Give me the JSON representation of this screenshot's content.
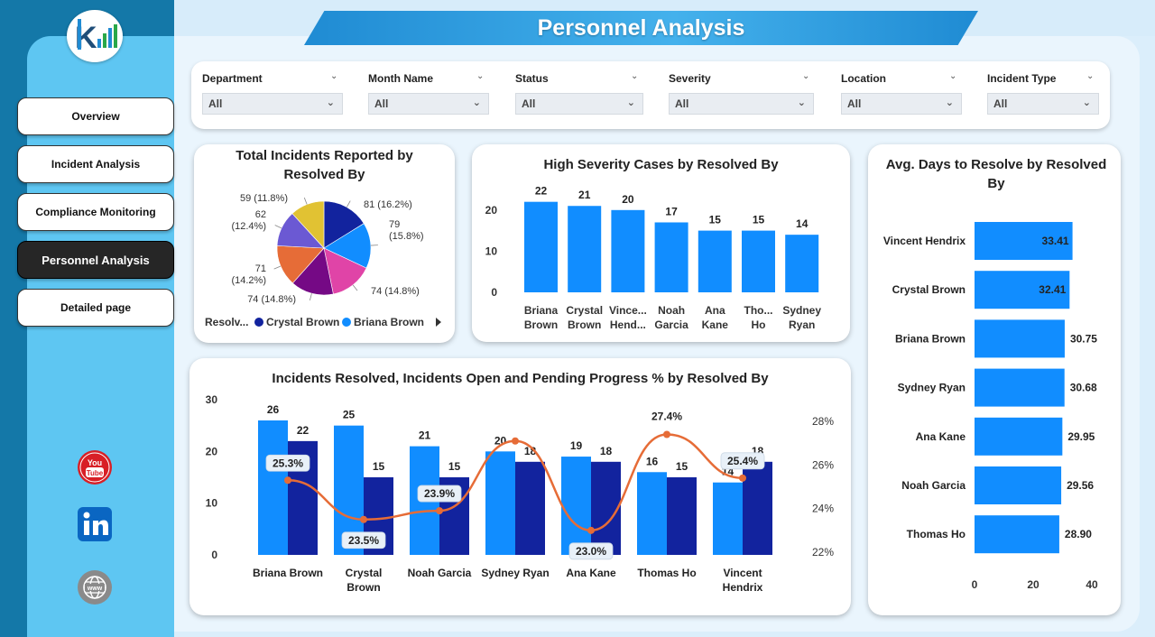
{
  "page_title": "Personnel Analysis",
  "nav": [
    {
      "label": "Overview",
      "active": false
    },
    {
      "label": "Incident Analysis",
      "active": false
    },
    {
      "label": "Compliance Monitoring",
      "active": false
    },
    {
      "label": "Personnel Analysis",
      "active": true
    },
    {
      "label": "Detailed page",
      "active": false
    }
  ],
  "filters": [
    {
      "label": "Department",
      "value": "All"
    },
    {
      "label": "Month Name",
      "value": "All"
    },
    {
      "label": "Status",
      "value": "All"
    },
    {
      "label": "Severity",
      "value": "All"
    },
    {
      "label": "Location",
      "value": "All"
    },
    {
      "label": "Incident Type",
      "value": "All"
    }
  ],
  "social": [
    "youtube-icon",
    "linkedin-icon",
    "globe-icon"
  ],
  "colors": {
    "bar_light": "#118dff",
    "bar_dark": "#12239e",
    "line": "#e66c37",
    "pie": [
      "#12239e",
      "#118dff",
      "#e044a7",
      "#750985",
      "#e66c37",
      "#6b59d3",
      "#e1c233"
    ]
  },
  "chart_data": [
    {
      "type": "pie",
      "title": "Total Incidents Reported by Resolved By",
      "legend_title": "Resolv...",
      "legend_visible": [
        "Crystal Brown",
        "Briana Brown"
      ],
      "slices": [
        {
          "value": 81,
          "label": "81 (16.2%)"
        },
        {
          "value": 79,
          "label": "79 (15.8%)"
        },
        {
          "value": 74,
          "label": "74 (14.8%)"
        },
        {
          "value": 74,
          "label": "74 (14.8%)"
        },
        {
          "value": 71,
          "label": "71 (14.2%)"
        },
        {
          "value": 62,
          "label": "62 (12.4%)"
        },
        {
          "value": 59,
          "label": "59 (11.8%)"
        }
      ]
    },
    {
      "type": "bar",
      "title": "High Severity Cases by Resolved By",
      "categories": [
        [
          "Briana",
          "Brown"
        ],
        [
          "Crystal",
          "Brown"
        ],
        [
          "Vince...",
          "Hend..."
        ],
        [
          "Noah",
          "Garcia"
        ],
        [
          "Ana",
          "Kane"
        ],
        [
          "Tho...",
          "Ho"
        ],
        [
          "Sydney",
          "Ryan"
        ]
      ],
      "values": [
        22,
        21,
        20,
        17,
        15,
        15,
        14
      ],
      "yticks": [
        0,
        10,
        20
      ],
      "ylim": [
        0,
        25
      ]
    },
    {
      "type": "bar",
      "orientation": "horizontal",
      "title": "Avg. Days to Resolve by Resolved By",
      "categories": [
        "Vincent Hendrix",
        "Crystal Brown",
        "Briana Brown",
        "Sydney Ryan",
        "Ana Kane",
        "Noah Garcia",
        "Thomas Ho"
      ],
      "values": [
        33.41,
        32.41,
        30.75,
        30.68,
        29.95,
        29.56,
        28.9
      ],
      "value_labels": [
        "33.41",
        "32.41",
        "30.75",
        "30.68",
        "29.95",
        "29.56",
        "28.90"
      ],
      "xticks": [
        0,
        20,
        40
      ],
      "xlim": [
        0,
        40
      ]
    },
    {
      "type": "combo",
      "title": "Incidents Resolved, Incidents Open and Pending Progress % by Resolved By",
      "categories": [
        [
          "Briana Brown"
        ],
        [
          "Crystal",
          "Brown"
        ],
        [
          "Noah Garcia"
        ],
        [
          "Sydney Ryan"
        ],
        [
          "Ana Kane"
        ],
        [
          "Thomas Ho"
        ],
        [
          "Vincent",
          "Hendrix"
        ]
      ],
      "series": [
        {
          "name": "Incidents Resolved",
          "values": [
            26,
            25,
            21,
            20,
            19,
            16,
            14
          ]
        },
        {
          "name": "Incidents Open",
          "values": [
            22,
            15,
            15,
            18,
            18,
            15,
            18
          ]
        },
        {
          "name": "Pending Progress %",
          "values": [
            25.3,
            23.5,
            23.9,
            27.1,
            23.0,
            27.4,
            25.4
          ]
        }
      ],
      "pct_labels": [
        "25.3%",
        "23.5%",
        "23.9%",
        "",
        "23.0%",
        "27.4%",
        "25.4%"
      ],
      "yticks": [
        0,
        10,
        20,
        30
      ],
      "ylim": [
        0,
        30
      ],
      "y2ticks": [
        "22%",
        "24%",
        "26%",
        "28%"
      ],
      "y2lim": [
        22,
        28
      ]
    }
  ]
}
